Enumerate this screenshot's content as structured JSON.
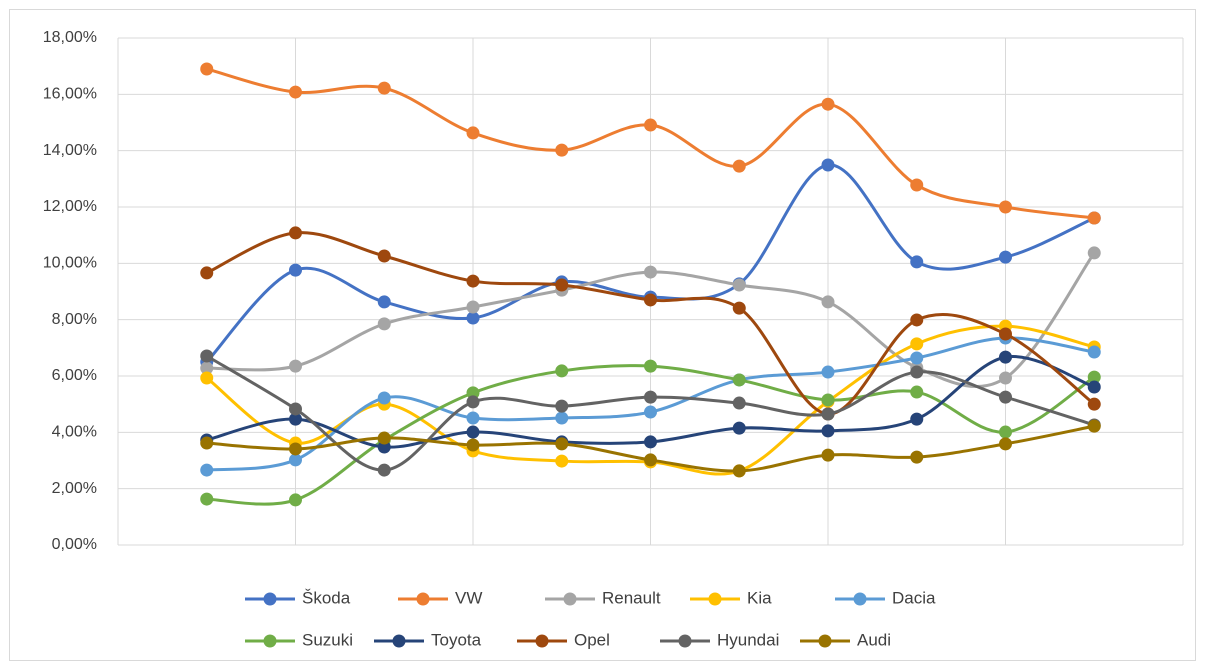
{
  "chart_data": {
    "type": "line",
    "smooth": true,
    "grid": true,
    "legend": "bottom",
    "categories": [
      null,
      null,
      null,
      null,
      null,
      null,
      null,
      null,
      null,
      null,
      null
    ],
    "ylim": [
      0,
      18
    ],
    "yticks": [
      {
        "value": 0,
        "label": "0,00%"
      },
      {
        "value": 2,
        "label": "2,00%"
      },
      {
        "value": 4,
        "label": "4,00%"
      },
      {
        "value": 6,
        "label": "6,00%"
      },
      {
        "value": 8,
        "label": "8,00%"
      },
      {
        "value": 10,
        "label": "10,00%"
      },
      {
        "value": 12,
        "label": "12,00%"
      },
      {
        "value": 14,
        "label": "14,00%"
      },
      {
        "value": 16,
        "label": "16,00%"
      },
      {
        "value": 18,
        "label": "18,00%"
      }
    ],
    "series": [
      {
        "name": "Škoda",
        "color": "#4472c4",
        "values": [
          6.5,
          9.76,
          8.63,
          8.06,
          9.34,
          8.8,
          9.27,
          13.49,
          10.05,
          10.22,
          11.61
        ]
      },
      {
        "name": "VW",
        "color": "#ed7d31",
        "values": [
          16.9,
          16.08,
          16.22,
          14.63,
          14.02,
          14.91,
          13.45,
          15.65,
          12.78,
          12.0,
          11.61
        ]
      },
      {
        "name": "Renault",
        "color": "#a5a5a5",
        "values": [
          6.28,
          6.35,
          7.85,
          8.45,
          9.05,
          9.69,
          9.23,
          8.63,
          6.3,
          5.93,
          10.37
        ]
      },
      {
        "name": "Kia",
        "color": "#ffc000",
        "values": [
          5.93,
          3.62,
          5.0,
          3.34,
          2.98,
          2.95,
          2.63,
          5.1,
          7.14,
          7.77,
          7.03
        ]
      },
      {
        "name": "Dacia",
        "color": "#5b9bd5",
        "values": [
          2.66,
          3.02,
          5.22,
          4.51,
          4.51,
          4.72,
          5.86,
          6.14,
          6.64,
          7.35,
          6.85
        ]
      },
      {
        "name": "Suzuki",
        "color": "#70ad47",
        "values": [
          1.63,
          1.6,
          3.73,
          5.4,
          6.18,
          6.35,
          5.86,
          5.15,
          5.43,
          4.01,
          5.96
        ]
      },
      {
        "name": "Toyota",
        "color": "#264478",
        "values": [
          3.73,
          4.47,
          3.48,
          4.01,
          3.66,
          3.66,
          4.15,
          4.05,
          4.47,
          6.67,
          5.61
        ]
      },
      {
        "name": "Opel",
        "color": "#9e480e",
        "values": [
          9.66,
          11.08,
          10.26,
          9.37,
          9.23,
          8.7,
          8.41,
          4.65,
          7.99,
          7.49,
          5.0
        ]
      },
      {
        "name": "Hyundai",
        "color": "#636363",
        "values": [
          6.71,
          4.83,
          2.66,
          5.08,
          4.93,
          5.25,
          5.04,
          4.65,
          6.14,
          5.25,
          4.26
        ]
      },
      {
        "name": "Audi",
        "color": "#997300",
        "values": [
          3.62,
          3.41,
          3.8,
          3.55,
          3.59,
          3.02,
          2.63,
          3.19,
          3.12,
          3.59,
          4.22
        ]
      }
    ]
  }
}
